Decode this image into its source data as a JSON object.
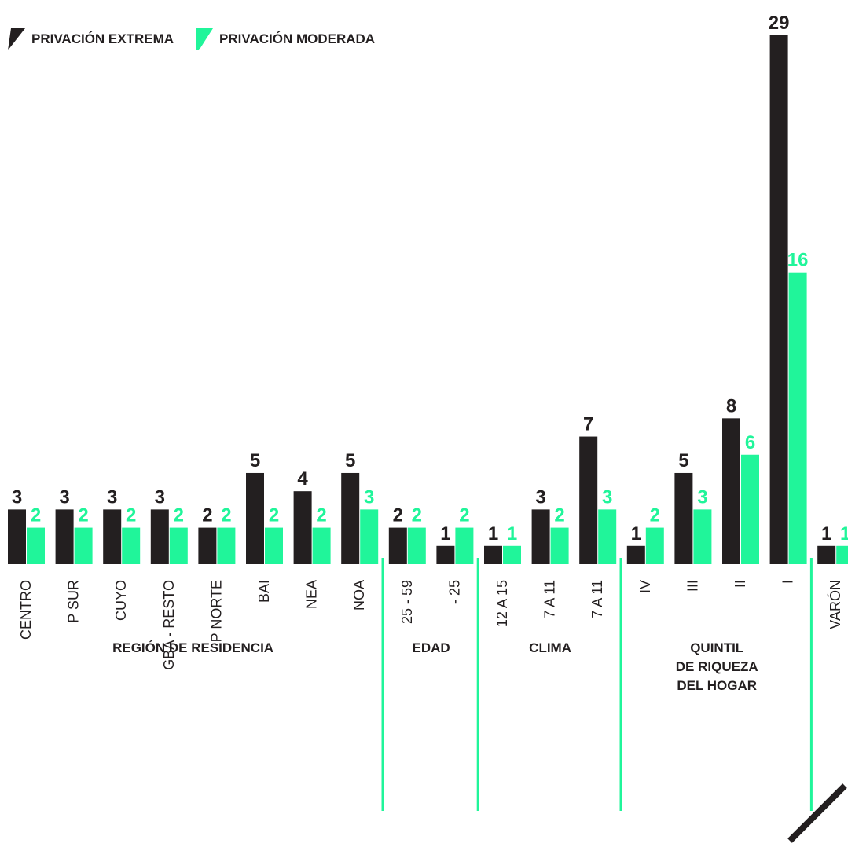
{
  "colors": {
    "extrema": "#231f20",
    "moderada": "#20f59a",
    "separator": "#20f59a",
    "text": "#231f20"
  },
  "legend": {
    "extrema_label": "PRIVACIÓN EXTREMA",
    "moderada_label": "PRIVACIÓN MODERADA"
  },
  "chart_data": {
    "type": "bar",
    "ylim": [
      0,
      29
    ],
    "grid": false,
    "legend_position": "top-left",
    "categories": [
      "CENTRO",
      "P SUR",
      "CUYO",
      "GBA - RESTO",
      "P NORTE",
      "BAI",
      "NEA",
      "NOA",
      "25 - 59",
      "- 25",
      "12 A 15",
      "7 A 11",
      "7 A 11",
      "IV",
      "III",
      "II",
      "I",
      "VARÓN"
    ],
    "series": [
      {
        "name": "PRIVACIÓN EXTREMA",
        "values": [
          3,
          3,
          3,
          3,
          2,
          5,
          4,
          5,
          2,
          1,
          1,
          3,
          7,
          1,
          5,
          8,
          29,
          1
        ]
      },
      {
        "name": "PRIVACIÓN MODERADA",
        "values": [
          2,
          2,
          2,
          2,
          2,
          2,
          2,
          3,
          2,
          2,
          1,
          2,
          3,
          2,
          3,
          6,
          16,
          1
        ]
      }
    ],
    "groups": [
      {
        "label": "REGIÓN DE RESIDENCIA",
        "lines": [
          "REGIÓN DE RESIDENCIA"
        ],
        "start": 0,
        "end": 7
      },
      {
        "label": "EDAD",
        "lines": [
          "EDAD"
        ],
        "start": 8,
        "end": 9
      },
      {
        "label": "CLIMA",
        "lines": [
          "CLIMA"
        ],
        "start": 10,
        "end": 12
      },
      {
        "label": "QUINTIL DE RIQUEZA DEL HOGAR",
        "lines": [
          "QUINTIL",
          "DE RIQUEZA",
          "DEL HOGAR"
        ],
        "start": 13,
        "end": 16
      },
      {
        "label": "",
        "lines": [],
        "start": 17,
        "end": 17
      }
    ]
  }
}
